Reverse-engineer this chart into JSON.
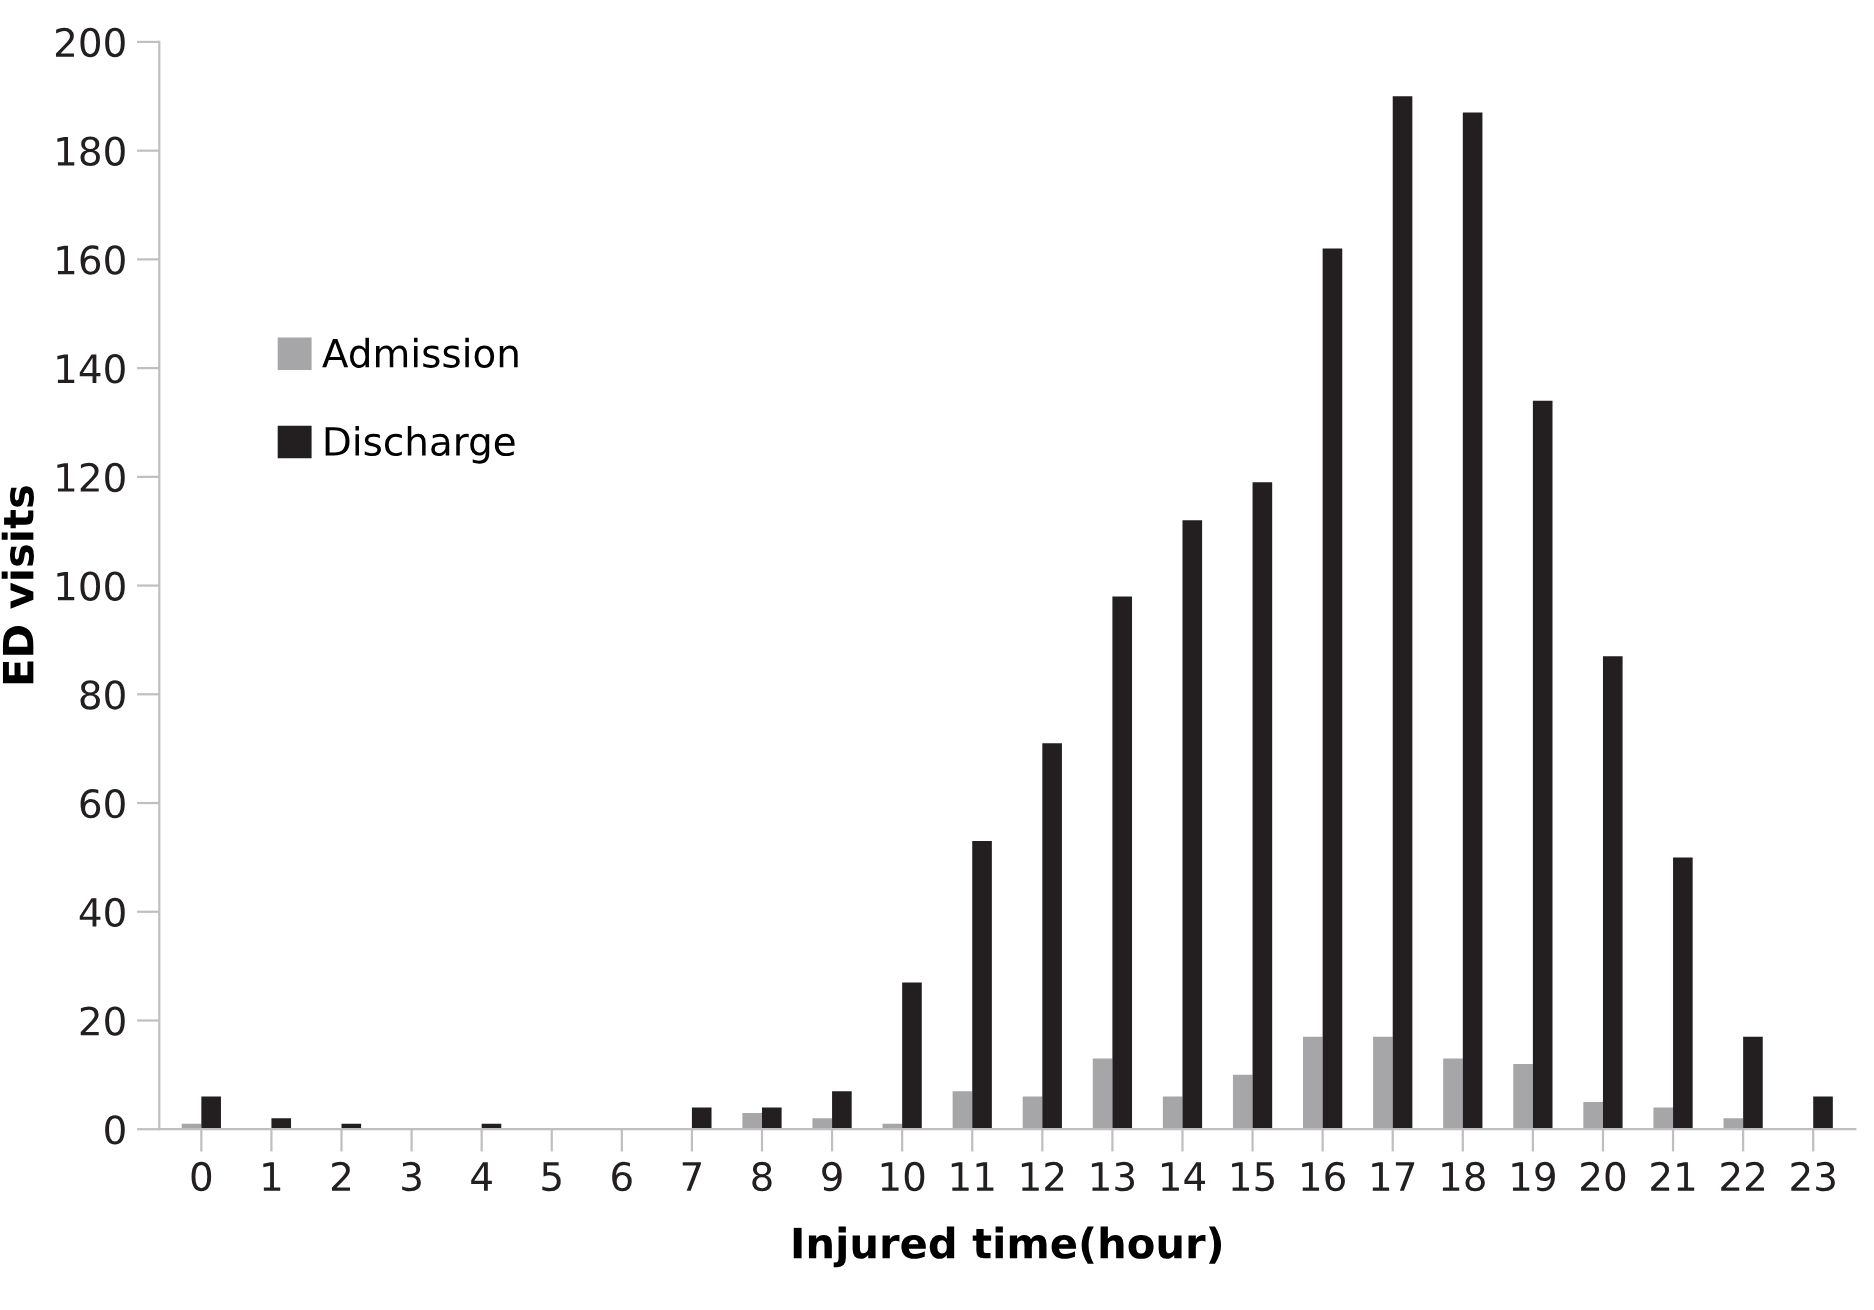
{
  "chart_data": {
    "type": "bar",
    "xlabel": "Injured time(hour)",
    "ylabel": "ED visits",
    "categories": [
      "0",
      "1",
      "2",
      "3",
      "4",
      "5",
      "6",
      "7",
      "8",
      "9",
      "10",
      "11",
      "12",
      "13",
      "14",
      "15",
      "16",
      "17",
      "18",
      "19",
      "20",
      "21",
      "22",
      "23"
    ],
    "series": [
      {
        "name": "Admission",
        "color": "#a6a6a8",
        "values": [
          1,
          0,
          0,
          0,
          0,
          0,
          0,
          0,
          3,
          2,
          1,
          7,
          6,
          13,
          6,
          10,
          17,
          17,
          13,
          12,
          5,
          4,
          2,
          0
        ]
      },
      {
        "name": "Discharge",
        "color": "#231f20",
        "values": [
          6,
          2,
          1,
          0,
          1,
          0,
          0,
          4,
          4,
          7,
          27,
          53,
          71,
          98,
          112,
          119,
          162,
          190,
          187,
          134,
          87,
          50,
          17,
          6
        ]
      }
    ],
    "ylim": [
      0,
      200
    ],
    "yticks": [
      0,
      20,
      40,
      60,
      80,
      100,
      120,
      140,
      160,
      180,
      200
    ],
    "grid": false,
    "legend": "left"
  }
}
